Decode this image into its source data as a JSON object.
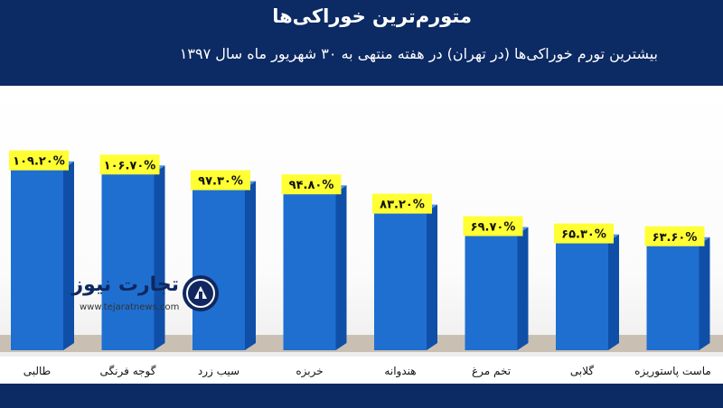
{
  "header": {
    "title": "متورم‌ترین خوراکی‌ها",
    "subtitle": "بیشترین تورم خوراکی‌ها (در تهران) در هفته منتهی به ۳۰ شهریور ماه سال ۱۳۹۷"
  },
  "logo": {
    "name": "تجارت نیوز",
    "url": "www.tejaratnews.com"
  },
  "colors": {
    "header_bg": "#0c2a63",
    "bar_front": "#1f6fd0",
    "bar_side": "#0f4fa8",
    "label_bg": "#ffff33"
  },
  "chart_data": {
    "type": "bar",
    "categories": [
      "طالبی",
      "گوجه فرنگی",
      "سیب زرد",
      "خربزه",
      "هندوانه",
      "تخم مرغ",
      "گلابی",
      "ماست پاستوریزه"
    ],
    "values": [
      109.2,
      106.7,
      97.3,
      94.8,
      83.2,
      69.7,
      65.3,
      63.6
    ],
    "value_labels": [
      "۱۰۹.۲۰%",
      "۱۰۶.۷۰%",
      "۹۷.۳۰%",
      "۹۴.۸۰%",
      "۸۳.۲۰%",
      "۶۹.۷۰%",
      "۶۵.۳۰%",
      "۶۳.۶۰%"
    ],
    "ylim": [
      0,
      115
    ],
    "grid": false,
    "legend": "none"
  }
}
